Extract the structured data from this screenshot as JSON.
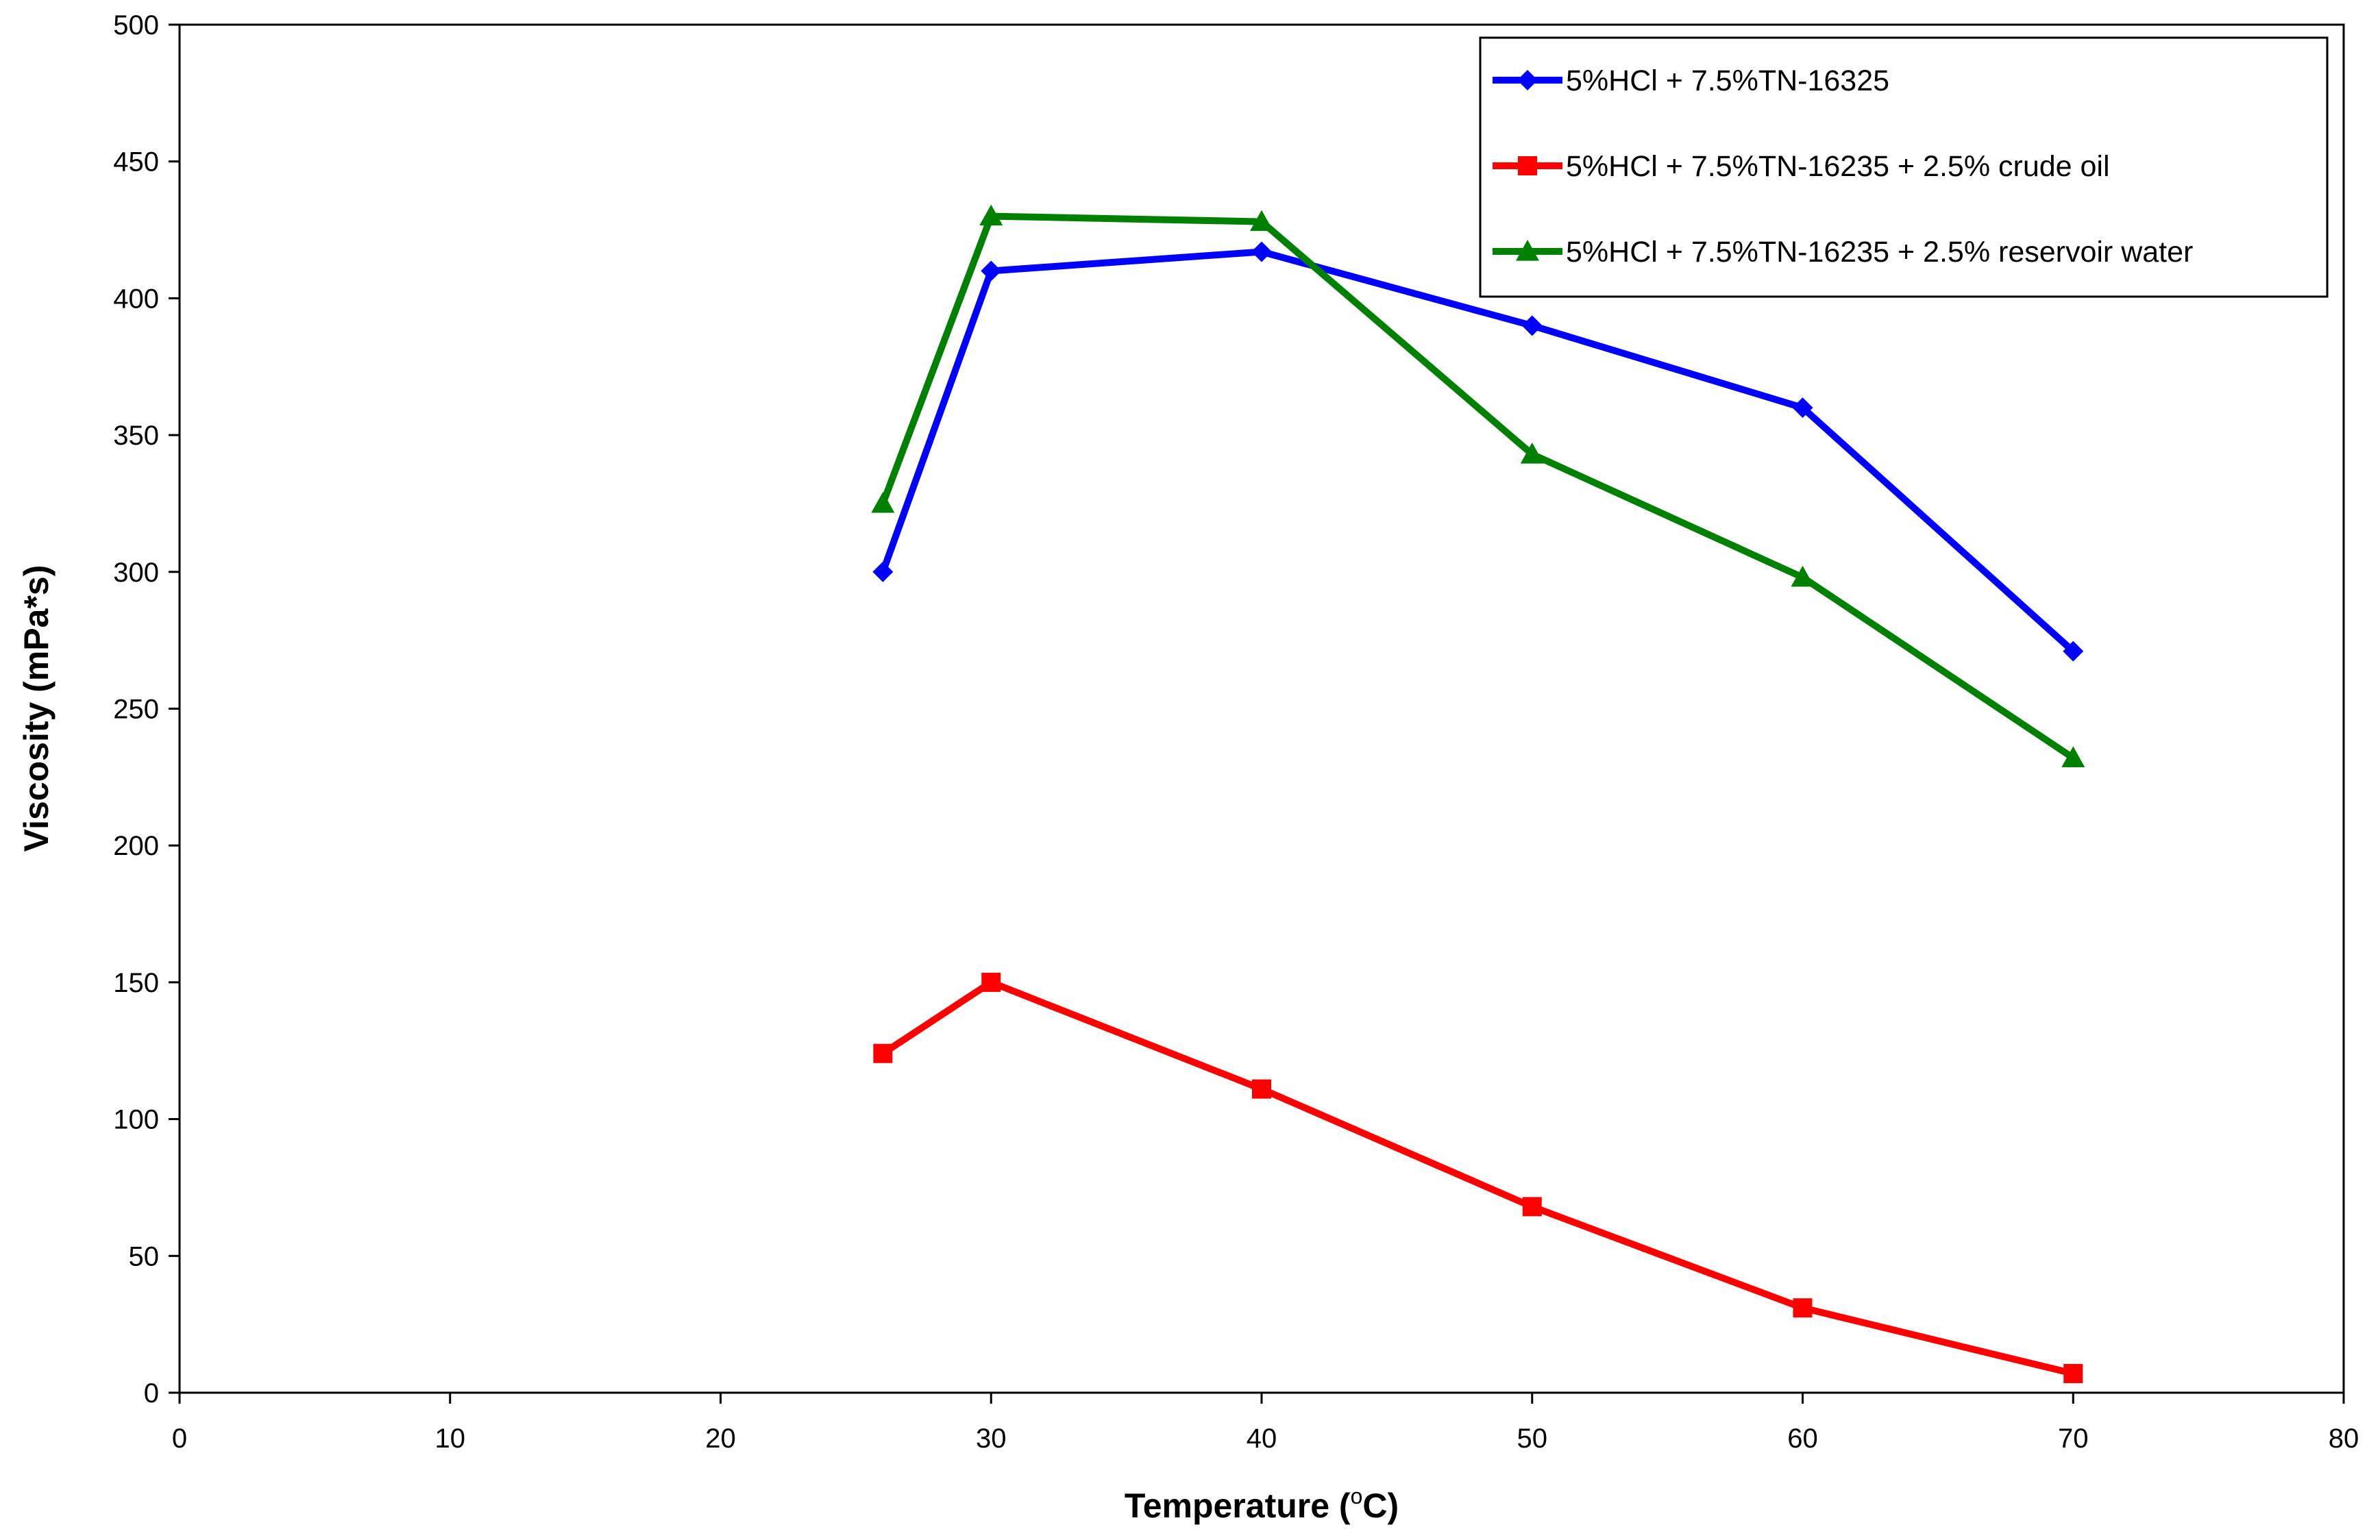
{
  "chart_data": {
    "type": "line",
    "title": "",
    "xlabel_main": "Temperature (",
    "xlabel_sup": "o",
    "xlabel_end": "C)",
    "ylabel": "Viscosity (mPa*s)",
    "xlim": [
      0,
      80
    ],
    "ylim": [
      0,
      500
    ],
    "x_ticks": [
      0,
      10,
      20,
      30,
      40,
      50,
      60,
      70,
      80
    ],
    "y_ticks": [
      0,
      50,
      100,
      150,
      200,
      250,
      300,
      350,
      400,
      450,
      500
    ],
    "grid": false,
    "legend_position": "top-right",
    "series": [
      {
        "name": "5%HCl + 7.5%TN-16325",
        "color": "#0000ff",
        "marker": "diamond",
        "x": [
          26,
          30,
          40,
          50,
          60,
          70
        ],
        "y": [
          300,
          410,
          417,
          390,
          360,
          271
        ]
      },
      {
        "name": "5%HCl + 7.5%TN-16235 + 2.5% crude oil",
        "color": "#ff0000",
        "marker": "square",
        "x": [
          26,
          30,
          40,
          50,
          60,
          70
        ],
        "y": [
          124,
          150,
          111,
          68,
          31,
          7
        ]
      },
      {
        "name": "5%HCl + 7.5%TN-16235 + 2.5% reservoir water",
        "color": "#008000",
        "marker": "triangle",
        "x": [
          26,
          30,
          40,
          50,
          60,
          70
        ],
        "y": [
          325,
          430,
          428,
          343,
          298,
          232
        ]
      }
    ]
  }
}
